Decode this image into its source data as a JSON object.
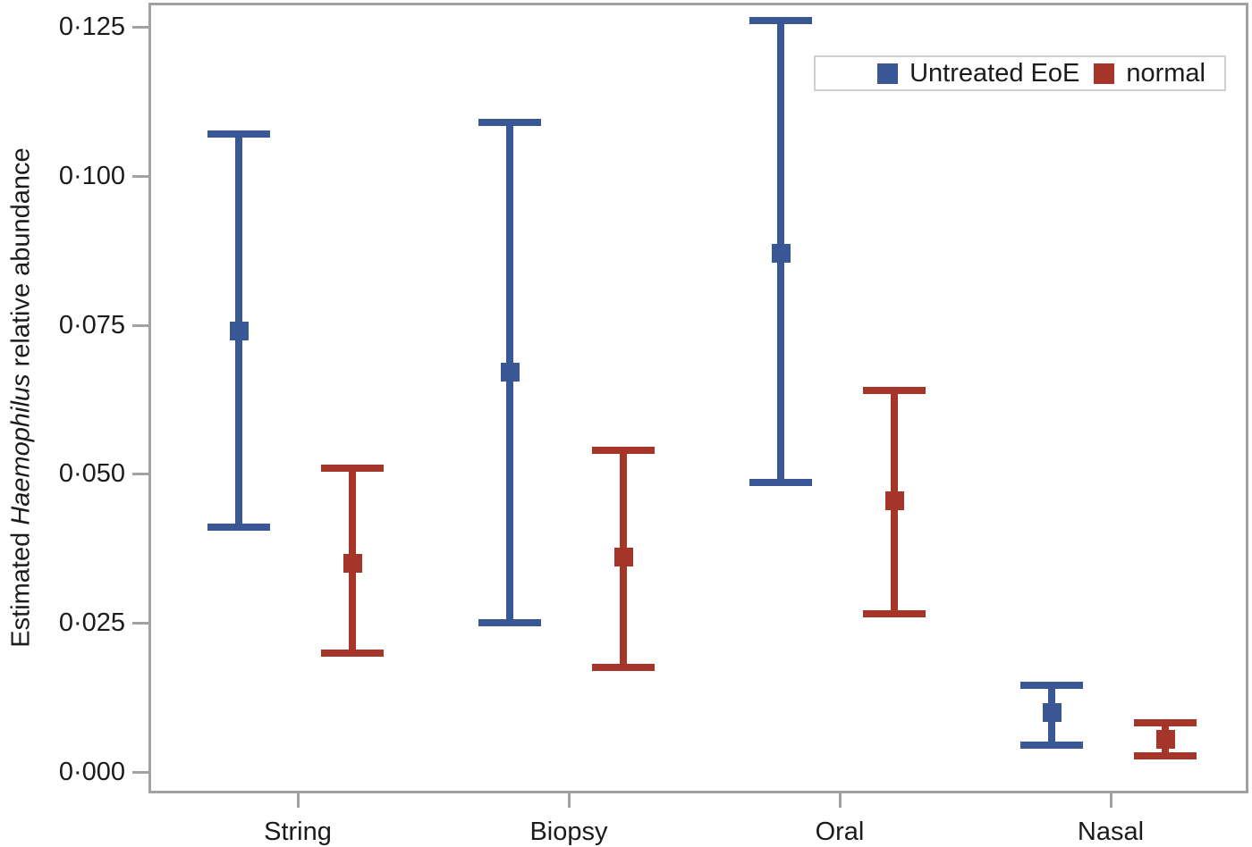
{
  "chart_data": {
    "type": "errorbar",
    "title": "",
    "xlabel": "",
    "categories": [
      "String",
      "Biopsy",
      "Oral",
      "Nasal"
    ],
    "y_axis": {
      "label_plain": "Estimated Haemophilus relative abundance",
      "label_parts": [
        {
          "text": "Estimated ",
          "italic": false
        },
        {
          "text": "Haemophilus",
          "italic": true
        },
        {
          "text": " relative abundance",
          "italic": false
        }
      ],
      "range": [
        0,
        0.125
      ],
      "decimal_separator": "·",
      "ticks": [
        {
          "value": 0.0,
          "label": "0·000"
        },
        {
          "value": 0.025,
          "label": "0·025"
        },
        {
          "value": 0.05,
          "label": "0·050"
        },
        {
          "value": 0.075,
          "label": "0·075"
        },
        {
          "value": 0.1,
          "label": "0·100"
        },
        {
          "value": 0.125,
          "label": "0·125"
        }
      ]
    },
    "grid": false,
    "legend_position": "top-right",
    "series": [
      {
        "name": "Untreated EoE",
        "color": "#3A5795",
        "points": [
          {
            "category": "String",
            "mean": 0.074,
            "lower": 0.041,
            "upper": 0.107
          },
          {
            "category": "Biopsy",
            "mean": 0.067,
            "lower": 0.025,
            "upper": 0.109
          },
          {
            "category": "Oral",
            "mean": 0.087,
            "lower": 0.0485,
            "upper": 0.126
          },
          {
            "category": "Nasal",
            "mean": 0.01,
            "lower": 0.0045,
            "upper": 0.0145
          }
        ]
      },
      {
        "name": "normal",
        "color": "#A63529",
        "points": [
          {
            "category": "String",
            "mean": 0.035,
            "lower": 0.02,
            "upper": 0.051
          },
          {
            "category": "Biopsy",
            "mean": 0.036,
            "lower": 0.0175,
            "upper": 0.054
          },
          {
            "category": "Oral",
            "mean": 0.0455,
            "lower": 0.0265,
            "upper": 0.064
          },
          {
            "category": "Nasal",
            "mean": 0.0055,
            "lower": 0.0027,
            "upper": 0.0083
          }
        ]
      }
    ],
    "style": {
      "axis_color": "#a2a2a2",
      "text_color": "#1b1b1b",
      "background": "#ffffff"
    }
  }
}
